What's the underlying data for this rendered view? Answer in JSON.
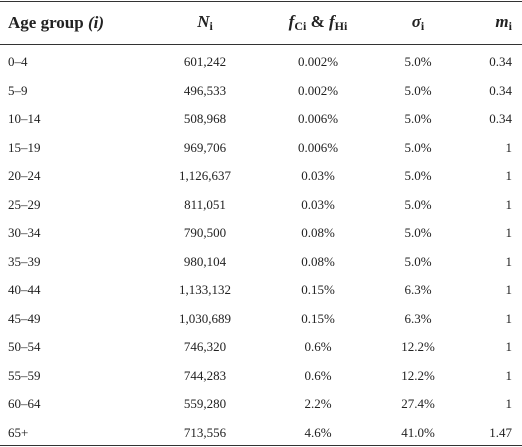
{
  "table": {
    "header": [
      [
        {
          "t": "Age group "
        },
        {
          "i": "(i)"
        }
      ],
      [
        {
          "i": "N",
          "sub": "i"
        }
      ],
      [
        {
          "i": "f",
          "sub": "Ci"
        },
        {
          "t": " & "
        },
        {
          "i": "f",
          "sub": "Hi"
        }
      ],
      [
        {
          "i": "σ",
          "sub": "i"
        }
      ],
      [
        {
          "i": "m",
          "sub": "i"
        }
      ]
    ],
    "rows": [
      [
        "0–4",
        "601,242",
        "0.002%",
        "5.0%",
        "0.34"
      ],
      [
        "5–9",
        "496,533",
        "0.002%",
        "5.0%",
        "0.34"
      ],
      [
        "10–14",
        "508,968",
        "0.006%",
        "5.0%",
        "0.34"
      ],
      [
        "15–19",
        "969,706",
        "0.006%",
        "5.0%",
        "1"
      ],
      [
        "20–24",
        "1,126,637",
        "0.03%",
        "5.0%",
        "1"
      ],
      [
        "25–29",
        "811,051",
        "0.03%",
        "5.0%",
        "1"
      ],
      [
        "30–34",
        "790,500",
        "0.08%",
        "5.0%",
        "1"
      ],
      [
        "35–39",
        "980,104",
        "0.08%",
        "5.0%",
        "1"
      ],
      [
        "40–44",
        "1,133,132",
        "0.15%",
        "6.3%",
        "1"
      ],
      [
        "45–49",
        "1,030,689",
        "0.15%",
        "6.3%",
        "1"
      ],
      [
        "50–54",
        "746,320",
        "0.6%",
        "12.2%",
        "1"
      ],
      [
        "55–59",
        "744,283",
        "0.6%",
        "12.2%",
        "1"
      ],
      [
        "60–64",
        "559,280",
        "2.2%",
        "27.4%",
        "1"
      ],
      [
        "65+",
        "713,556",
        "4.6%",
        "41.0%",
        "1.47"
      ]
    ]
  }
}
